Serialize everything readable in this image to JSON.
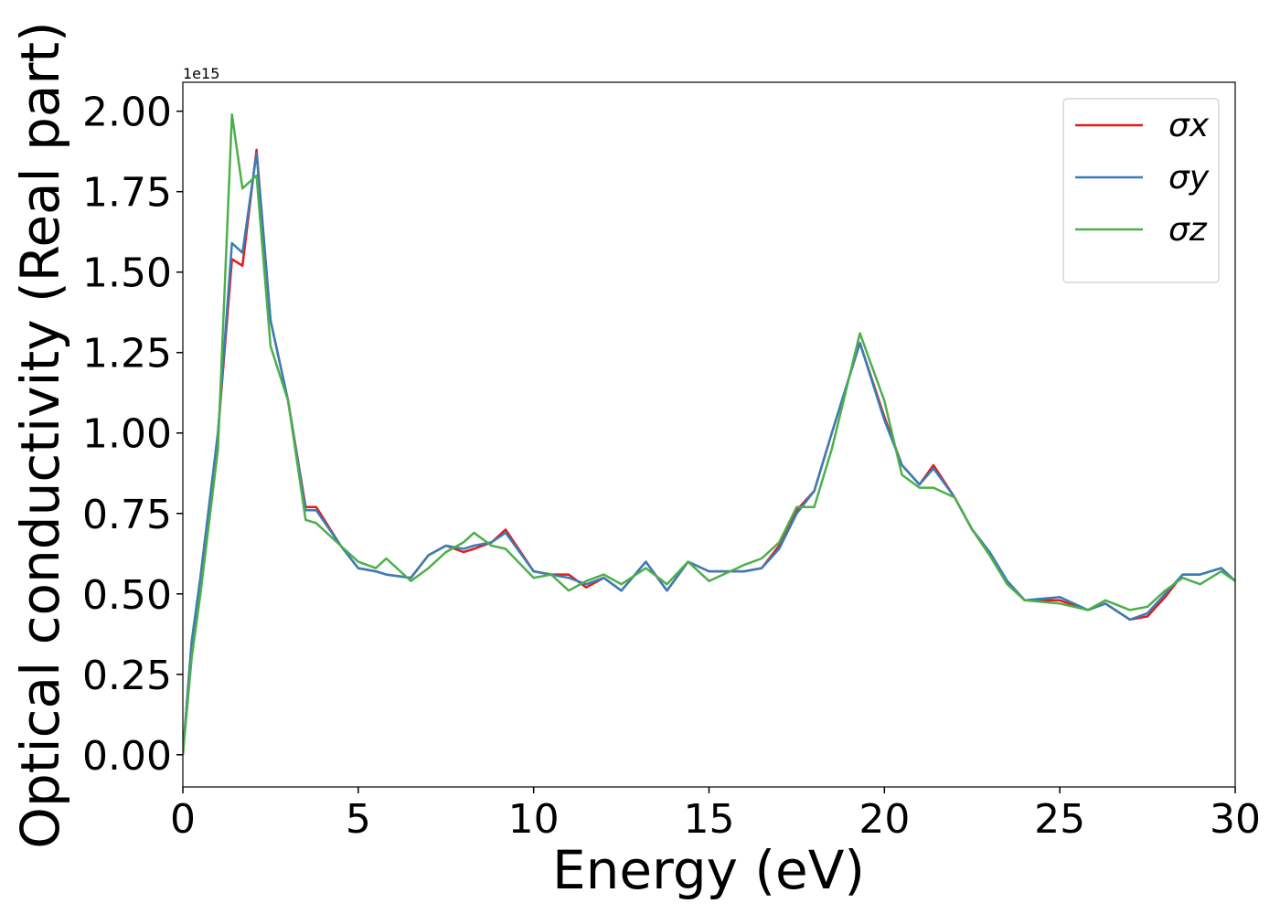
{
  "chart_data": {
    "type": "line",
    "x_label": "Energy (eV)",
    "y_label": "Optical conductivity (Real part)",
    "y_offset_label": "1e15",
    "xlim": [
      0,
      30
    ],
    "ylim": [
      -0.1,
      2.09
    ],
    "xticks": [
      0,
      5,
      10,
      15,
      20,
      25,
      30
    ],
    "yticks": [
      {
        "value": 0,
        "label": "0.00"
      },
      {
        "value": 0.25,
        "label": "0.25"
      },
      {
        "value": 0.5,
        "label": "0.50"
      },
      {
        "value": 0.75,
        "label": "0.75"
      },
      {
        "value": 1,
        "label": "1.00"
      },
      {
        "value": 1.25,
        "label": "1.25"
      },
      {
        "value": 1.5,
        "label": "1.50"
      },
      {
        "value": 1.75,
        "label": "1.75"
      },
      {
        "value": 2,
        "label": "2.00"
      }
    ],
    "legend": "upper right",
    "grid": false,
    "x": [
      0,
      0.25,
      0.5,
      1,
      1.4,
      1.7,
      2.1,
      2.5,
      3,
      3.5,
      3.8,
      4.5,
      5,
      5.5,
      5.8,
      6.5,
      7,
      7.5,
      8,
      8.3,
      8.8,
      9.2,
      10,
      10.5,
      11,
      11.5,
      12,
      12.5,
      13.2,
      13.8,
      14.4,
      15,
      16,
      16.5,
      17,
      17.5,
      18,
      18.5,
      19.3,
      20,
      20.5,
      21,
      21.4,
      22,
      22.5,
      23,
      23.5,
      24,
      25,
      25.8,
      26.3,
      27,
      27.5,
      28,
      28.5,
      29,
      29.6,
      30
    ],
    "series": [
      {
        "name": "σx",
        "color": "#e41a1c",
        "values": [
          0,
          0.35,
          0.55,
          1.0,
          1.54,
          1.52,
          1.88,
          1.35,
          1.1,
          0.77,
          0.77,
          0.65,
          0.58,
          0.57,
          0.56,
          0.55,
          0.62,
          0.65,
          0.63,
          0.64,
          0.66,
          0.7,
          0.57,
          0.56,
          0.56,
          0.52,
          0.55,
          0.51,
          0.6,
          0.51,
          0.6,
          0.57,
          0.57,
          0.58,
          0.65,
          0.76,
          0.82,
          1.0,
          1.28,
          1.05,
          0.9,
          0.84,
          0.9,
          0.8,
          0.7,
          0.63,
          0.54,
          0.48,
          0.48,
          0.45,
          0.47,
          0.42,
          0.43,
          0.49,
          0.56,
          0.56,
          0.58,
          0.54
        ]
      },
      {
        "name": "σy",
        "color": "#377eb8",
        "values": [
          0,
          0.35,
          0.55,
          1.0,
          1.59,
          1.56,
          1.87,
          1.35,
          1.1,
          0.76,
          0.76,
          0.65,
          0.58,
          0.57,
          0.56,
          0.55,
          0.62,
          0.65,
          0.64,
          0.65,
          0.66,
          0.69,
          0.57,
          0.56,
          0.55,
          0.53,
          0.55,
          0.51,
          0.6,
          0.51,
          0.6,
          0.57,
          0.57,
          0.58,
          0.64,
          0.75,
          0.82,
          1.0,
          1.28,
          1.04,
          0.9,
          0.84,
          0.89,
          0.8,
          0.7,
          0.63,
          0.54,
          0.48,
          0.49,
          0.45,
          0.47,
          0.42,
          0.44,
          0.5,
          0.56,
          0.56,
          0.58,
          0.54
        ]
      },
      {
        "name": "σz",
        "color": "#4daf4a",
        "values": [
          0,
          0.3,
          0.5,
          0.95,
          1.99,
          1.76,
          1.8,
          1.27,
          1.1,
          0.73,
          0.72,
          0.65,
          0.6,
          0.58,
          0.61,
          0.54,
          0.58,
          0.63,
          0.66,
          0.69,
          0.65,
          0.64,
          0.55,
          0.56,
          0.51,
          0.54,
          0.56,
          0.53,
          0.58,
          0.53,
          0.6,
          0.54,
          0.59,
          0.61,
          0.66,
          0.77,
          0.77,
          0.95,
          1.31,
          1.1,
          0.87,
          0.83,
          0.83,
          0.8,
          0.7,
          0.62,
          0.53,
          0.48,
          0.47,
          0.45,
          0.48,
          0.45,
          0.46,
          0.51,
          0.55,
          0.53,
          0.57,
          0.54
        ]
      }
    ]
  }
}
